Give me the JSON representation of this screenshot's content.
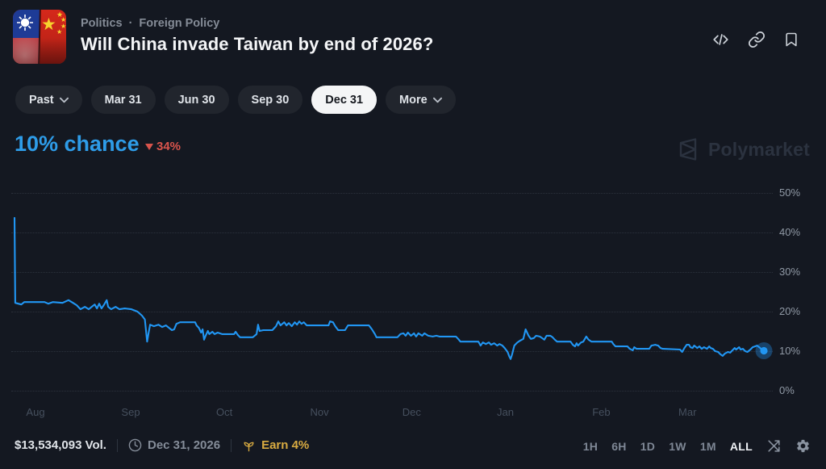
{
  "header": {
    "breadcrumb": {
      "category": "Politics",
      "separator": "·",
      "subcategory": "Foreign Policy"
    },
    "title": "Will China invade Taiwan by end of 2026?",
    "market_icon": "taiwan-china-split-flag",
    "actions": [
      "embed",
      "copy-link",
      "bookmark"
    ]
  },
  "tabs": {
    "items": [
      {
        "label": "Past",
        "has_chevron": true,
        "active": false
      },
      {
        "label": "Mar 31",
        "has_chevron": false,
        "active": false
      },
      {
        "label": "Jun 30",
        "has_chevron": false,
        "active": false
      },
      {
        "label": "Sep 30",
        "has_chevron": false,
        "active": false
      },
      {
        "label": "Dec 31",
        "has_chevron": false,
        "active": true
      },
      {
        "label": "More",
        "has_chevron": true,
        "active": false
      }
    ]
  },
  "price": {
    "chance": "10% chance",
    "delta": "34%",
    "delta_direction": "down",
    "chance_color": "#2e9ce8",
    "delta_color": "#d9544c"
  },
  "watermark": {
    "label": "Polymarket"
  },
  "chart_data": {
    "type": "line",
    "title": "Will China invade Taiwan by end of 2026? — Dec 31 outcome probability",
    "series_name": "Dec 31",
    "current_value_pct": 10,
    "change_pct": -34,
    "x_ticks": [
      "Aug",
      "Sep",
      "Oct",
      "Nov",
      "Dec",
      "Jan",
      "Feb",
      "Mar"
    ],
    "y_ticks": [
      "50%",
      "40%",
      "30%",
      "20%",
      "10%",
      "0%"
    ],
    "y_tick_values": [
      50,
      40,
      30,
      20,
      10,
      0
    ],
    "ylim": [
      0,
      55
    ],
    "grid": "dotted-horizontal",
    "legend": "none",
    "line_color": "#2196f3",
    "marker": "endpoint-glow-dot",
    "points": [
      [
        0.0,
        43.6
      ],
      [
        0.001,
        22.1
      ],
      [
        0.009,
        21.7
      ],
      [
        0.013,
        22.3
      ],
      [
        0.04,
        22.3
      ],
      [
        0.045,
        21.9
      ],
      [
        0.051,
        22.3
      ],
      [
        0.064,
        22.1
      ],
      [
        0.072,
        22.8
      ],
      [
        0.078,
        22.1
      ],
      [
        0.083,
        21.5
      ],
      [
        0.088,
        20.5
      ],
      [
        0.094,
        21.1
      ],
      [
        0.099,
        20.5
      ],
      [
        0.103,
        21.1
      ],
      [
        0.107,
        21.7
      ],
      [
        0.11,
        20.7
      ],
      [
        0.113,
        21.9
      ],
      [
        0.116,
        20.7
      ],
      [
        0.119,
        21.5
      ],
      [
        0.123,
        22.8
      ],
      [
        0.125,
        21.1
      ],
      [
        0.129,
        20.5
      ],
      [
        0.135,
        21.1
      ],
      [
        0.14,
        20.5
      ],
      [
        0.147,
        20.7
      ],
      [
        0.156,
        20.5
      ],
      [
        0.164,
        19.9
      ],
      [
        0.17,
        18.9
      ],
      [
        0.174,
        17.9
      ],
      [
        0.177,
        12.3
      ],
      [
        0.179,
        14.6
      ],
      [
        0.181,
        16.6
      ],
      [
        0.186,
        16.2
      ],
      [
        0.192,
        16.6
      ],
      [
        0.197,
        16.0
      ],
      [
        0.202,
        16.4
      ],
      [
        0.206,
        15.8
      ],
      [
        0.21,
        15.2
      ],
      [
        0.213,
        15.4
      ],
      [
        0.216,
        16.8
      ],
      [
        0.221,
        17.2
      ],
      [
        0.241,
        17.2
      ],
      [
        0.243,
        16.4
      ],
      [
        0.246,
        15.8
      ],
      [
        0.249,
        14.6
      ],
      [
        0.251,
        15.4
      ],
      [
        0.253,
        12.8
      ],
      [
        0.255,
        13.8
      ],
      [
        0.258,
        15.0
      ],
      [
        0.26,
        14.2
      ],
      [
        0.264,
        14.8
      ],
      [
        0.267,
        14.2
      ],
      [
        0.271,
        14.6
      ],
      [
        0.277,
        14.2
      ],
      [
        0.293,
        14.2
      ],
      [
        0.295,
        14.8
      ],
      [
        0.298,
        14.0
      ],
      [
        0.301,
        13.4
      ],
      [
        0.318,
        13.4
      ],
      [
        0.323,
        14.2
      ],
      [
        0.325,
        16.6
      ],
      [
        0.327,
        15.0
      ],
      [
        0.332,
        15.2
      ],
      [
        0.344,
        15.2
      ],
      [
        0.349,
        16.2
      ],
      [
        0.352,
        17.4
      ],
      [
        0.355,
        16.4
      ],
      [
        0.36,
        17.2
      ],
      [
        0.363,
        16.4
      ],
      [
        0.366,
        17.0
      ],
      [
        0.37,
        16.2
      ],
      [
        0.374,
        17.2
      ],
      [
        0.377,
        16.6
      ],
      [
        0.38,
        17.4
      ],
      [
        0.383,
        16.8
      ],
      [
        0.386,
        17.2
      ],
      [
        0.39,
        16.4
      ],
      [
        0.419,
        16.4
      ],
      [
        0.421,
        17.4
      ],
      [
        0.425,
        17.2
      ],
      [
        0.428,
        16.2
      ],
      [
        0.432,
        15.2
      ],
      [
        0.441,
        15.2
      ],
      [
        0.445,
        16.4
      ],
      [
        0.473,
        16.4
      ],
      [
        0.477,
        15.4
      ],
      [
        0.481,
        14.2
      ],
      [
        0.483,
        13.4
      ],
      [
        0.511,
        13.4
      ],
      [
        0.515,
        14.2
      ],
      [
        0.519,
        14.4
      ],
      [
        0.522,
        13.8
      ],
      [
        0.525,
        14.6
      ],
      [
        0.529,
        13.8
      ],
      [
        0.533,
        14.4
      ],
      [
        0.536,
        13.6
      ],
      [
        0.539,
        14.4
      ],
      [
        0.544,
        13.8
      ],
      [
        0.547,
        14.4
      ],
      [
        0.552,
        13.8
      ],
      [
        0.558,
        13.6
      ],
      [
        0.563,
        13.8
      ],
      [
        0.567,
        13.6
      ],
      [
        0.589,
        13.6
      ],
      [
        0.592,
        13.0
      ],
      [
        0.595,
        12.3
      ],
      [
        0.619,
        12.3
      ],
      [
        0.622,
        11.3
      ],
      [
        0.625,
        12.1
      ],
      [
        0.629,
        11.7
      ],
      [
        0.633,
        12.1
      ],
      [
        0.636,
        11.5
      ],
      [
        0.64,
        11.9
      ],
      [
        0.644,
        11.3
      ],
      [
        0.647,
        11.7
      ],
      [
        0.651,
        11.3
      ],
      [
        0.654,
        10.7
      ],
      [
        0.658,
        9.7
      ],
      [
        0.66,
        8.7
      ],
      [
        0.662,
        7.9
      ],
      [
        0.664,
        9.1
      ],
      [
        0.667,
        11.3
      ],
      [
        0.671,
        12.1
      ],
      [
        0.675,
        12.6
      ],
      [
        0.679,
        13.0
      ],
      [
        0.682,
        15.4
      ],
      [
        0.686,
        13.8
      ],
      [
        0.689,
        13.0
      ],
      [
        0.693,
        13.2
      ],
      [
        0.696,
        13.8
      ],
      [
        0.701,
        13.6
      ],
      [
        0.704,
        13.2
      ],
      [
        0.707,
        12.8
      ],
      [
        0.71,
        13.8
      ],
      [
        0.715,
        13.8
      ],
      [
        0.718,
        13.4
      ],
      [
        0.721,
        12.8
      ],
      [
        0.724,
        12.3
      ],
      [
        0.742,
        12.3
      ],
      [
        0.745,
        11.5
      ],
      [
        0.748,
        11.1
      ],
      [
        0.75,
        11.9
      ],
      [
        0.752,
        11.3
      ],
      [
        0.756,
        12.1
      ],
      [
        0.759,
        12.3
      ],
      [
        0.763,
        13.6
      ],
      [
        0.766,
        12.8
      ],
      [
        0.77,
        12.3
      ],
      [
        0.797,
        12.3
      ],
      [
        0.799,
        11.7
      ],
      [
        0.802,
        11.1
      ],
      [
        0.818,
        11.1
      ],
      [
        0.821,
        10.5
      ],
      [
        0.825,
        10.1
      ],
      [
        0.827,
        10.9
      ],
      [
        0.83,
        10.5
      ],
      [
        0.847,
        10.5
      ],
      [
        0.85,
        11.3
      ],
      [
        0.855,
        11.5
      ],
      [
        0.859,
        11.3
      ],
      [
        0.862,
        10.7
      ],
      [
        0.865,
        10.5
      ],
      [
        0.888,
        10.3
      ],
      [
        0.891,
        9.7
      ],
      [
        0.894,
        10.7
      ],
      [
        0.897,
        11.5
      ],
      [
        0.9,
        11.5
      ],
      [
        0.902,
        10.9
      ],
      [
        0.905,
        10.7
      ],
      [
        0.907,
        11.3
      ],
      [
        0.911,
        10.7
      ],
      [
        0.914,
        11.1
      ],
      [
        0.917,
        10.5
      ],
      [
        0.92,
        10.9
      ],
      [
        0.924,
        10.5
      ],
      [
        0.927,
        11.1
      ],
      [
        0.929,
        10.7
      ],
      [
        0.932,
        10.5
      ],
      [
        0.935,
        9.9
      ],
      [
        0.939,
        9.7
      ],
      [
        0.942,
        9.1
      ],
      [
        0.945,
        8.7
      ],
      [
        0.948,
        9.3
      ],
      [
        0.952,
        9.7
      ],
      [
        0.955,
        9.5
      ],
      [
        0.958,
        10.1
      ],
      [
        0.961,
        10.7
      ],
      [
        0.963,
        10.3
      ],
      [
        0.967,
        10.9
      ],
      [
        0.969,
        10.3
      ],
      [
        0.972,
        10.5
      ],
      [
        0.975,
        9.9
      ],
      [
        0.978,
        9.7
      ],
      [
        0.982,
        10.3
      ],
      [
        0.985,
        10.9
      ],
      [
        0.988,
        11.1
      ],
      [
        0.991,
        11.3
      ],
      [
        0.995,
        10.7
      ],
      [
        0.998,
        10.1
      ],
      [
        1.0,
        10.0
      ]
    ]
  },
  "footer": {
    "volume": "$13,534,093 Vol.",
    "date": "Dec 31, 2026",
    "earn": "Earn 4%",
    "ranges": [
      "1H",
      "6H",
      "1D",
      "1W",
      "1M",
      "ALL"
    ],
    "active_range": "ALL"
  }
}
